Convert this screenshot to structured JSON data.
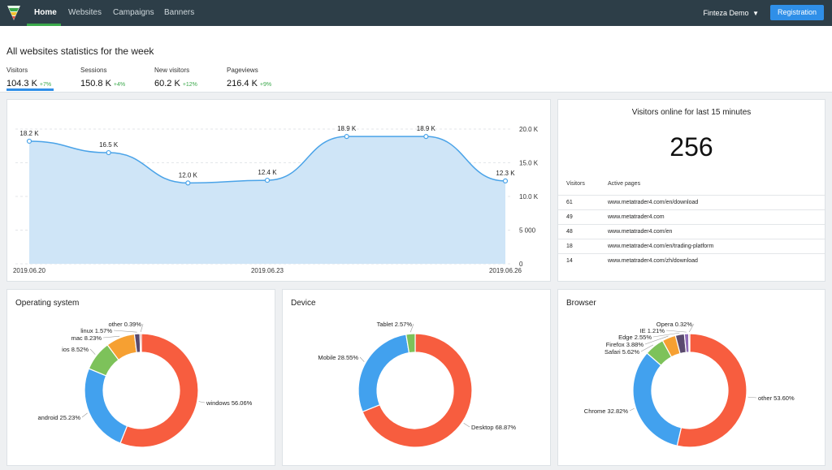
{
  "nav": {
    "items": [
      {
        "label": "Home",
        "active": true
      },
      {
        "label": "Websites",
        "active": false
      },
      {
        "label": "Campaigns",
        "active": false
      },
      {
        "label": "Banners",
        "active": false
      }
    ],
    "user": "Finteza Demo",
    "register_label": "Registration"
  },
  "header": {
    "title": "All websites statistics for the week",
    "metrics": [
      {
        "label": "Visitors",
        "value": "104.3 K",
        "change": "+7%"
      },
      {
        "label": "Sessions",
        "value": "150.8 K",
        "change": "+4%"
      },
      {
        "label": "New visitors",
        "value": "60.2 K",
        "change": "+12%"
      },
      {
        "label": "Pageviews",
        "value": "216.4 K",
        "change": "+9%"
      }
    ]
  },
  "online": {
    "title": "Visitors online for last 15 minutes",
    "count": "256",
    "columns": [
      "Visitors",
      "Active pages"
    ],
    "rows": [
      {
        "visitors": "61",
        "page": "www.metatrader4.com/en/download"
      },
      {
        "visitors": "49",
        "page": "www.metatrader4.com"
      },
      {
        "visitors": "48",
        "page": "www.metatrader4.com/en"
      },
      {
        "visitors": "18",
        "page": "www.metatrader4.com/en/trading-platform"
      },
      {
        "visitors": "14",
        "page": "www.metatrader4.com/zh/download"
      }
    ]
  },
  "colors": {
    "accent": "#2f8fe8",
    "positive": "#3aa84a",
    "nav_bg": "#2d3e48",
    "area_fill": "#cfe5f7",
    "area_line": "#4aa3e8"
  },
  "chart_data": [
    {
      "type": "area",
      "title": "",
      "x": [
        "2019.06.20",
        "2019.06.21",
        "2019.06.22",
        "2019.06.23",
        "2019.06.24",
        "2019.06.25",
        "2019.06.26"
      ],
      "x_tick_labels": [
        "2019.06.20",
        "2019.06.23",
        "2019.06.26"
      ],
      "series": [
        {
          "values": [
            18200,
            16500,
            12000,
            12400,
            18900,
            18900,
            12300
          ],
          "labels": [
            "18.2 K",
            "16.5 K",
            "12.0 K",
            "12.4 K",
            "18.9 K",
            "18.9 K",
            "12.3 K"
          ]
        }
      ],
      "ylim": [
        0,
        20000
      ],
      "y_ticks": [
        0,
        5000,
        10000,
        15000,
        20000
      ],
      "y_tick_labels": [
        "0",
        "5 000",
        "10.0 K",
        "15.0 K",
        "20.0 K"
      ],
      "y_axis_side": "right",
      "grid": true
    },
    {
      "type": "pie",
      "title": "Operating system",
      "donut": true,
      "slices": [
        {
          "label": "windows 56.06%",
          "value": 56.06,
          "color": "#f75d3f"
        },
        {
          "label": "android 25.23%",
          "value": 25.23,
          "color": "#42a1ee"
        },
        {
          "label": "ios 8.52%",
          "value": 8.52,
          "color": "#7dc25a"
        },
        {
          "label": "mac 8.23%",
          "value": 8.23,
          "color": "#f6a032"
        },
        {
          "label": "linux 1.57%",
          "value": 1.57,
          "color": "#5a4a6e"
        },
        {
          "label": "other 0.39%",
          "value": 0.39,
          "color": "#c0392b"
        }
      ]
    },
    {
      "type": "pie",
      "title": "Device",
      "donut": true,
      "slices": [
        {
          "label": "Desktop 68.87%",
          "value": 68.87,
          "color": "#f75d3f"
        },
        {
          "label": "Mobile 28.55%",
          "value": 28.55,
          "color": "#42a1ee"
        },
        {
          "label": "Tablet 2.57%",
          "value": 2.57,
          "color": "#7dc25a"
        }
      ]
    },
    {
      "type": "pie",
      "title": "Browser",
      "donut": true,
      "slices": [
        {
          "label": "other 53.60%",
          "value": 53.6,
          "color": "#f75d3f"
        },
        {
          "label": "Chrome 32.82%",
          "value": 32.82,
          "color": "#42a1ee"
        },
        {
          "label": "Safari 5.62%",
          "value": 5.62,
          "color": "#7dc25a"
        },
        {
          "label": "Firefox 3.88%",
          "value": 3.88,
          "color": "#f6a032"
        },
        {
          "label": "Edge 2.55%",
          "value": 2.55,
          "color": "#5a4a6e"
        },
        {
          "label": "IE 1.21%",
          "value": 1.21,
          "color": "#8e6bb5"
        },
        {
          "label": "Opera 0.32%",
          "value": 0.32,
          "color": "#c0392b"
        }
      ]
    }
  ]
}
